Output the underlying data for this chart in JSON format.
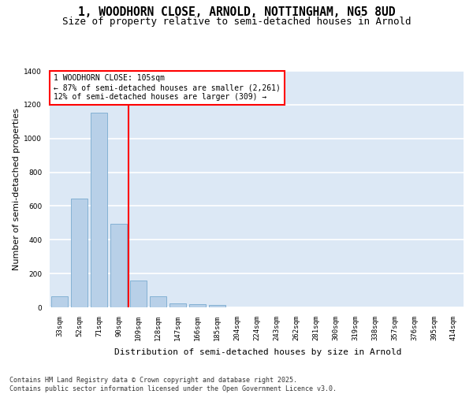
{
  "title_line1": "1, WOODHORN CLOSE, ARNOLD, NOTTINGHAM, NG5 8UD",
  "title_line2": "Size of property relative to semi-detached houses in Arnold",
  "xlabel": "Distribution of semi-detached houses by size in Arnold",
  "ylabel": "Number of semi-detached properties",
  "bins": [
    "33sqm",
    "52sqm",
    "71sqm",
    "90sqm",
    "109sqm",
    "128sqm",
    "147sqm",
    "166sqm",
    "185sqm",
    "204sqm",
    "224sqm",
    "243sqm",
    "262sqm",
    "281sqm",
    "300sqm",
    "319sqm",
    "338sqm",
    "357sqm",
    "376sqm",
    "395sqm",
    "414sqm"
  ],
  "values": [
    65,
    645,
    1155,
    495,
    160,
    65,
    25,
    20,
    15,
    0,
    0,
    0,
    0,
    0,
    0,
    0,
    0,
    0,
    0,
    0,
    0
  ],
  "bar_color": "#b8d0e8",
  "bar_edge_color": "#7aaacf",
  "vline_color": "red",
  "annotation_title": "1 WOODHORN CLOSE: 105sqm",
  "annotation_line2": "← 87% of semi-detached houses are smaller (2,261)",
  "annotation_line3": "12% of semi-detached houses are larger (309) →",
  "annotation_box_color": "red",
  "ylim": [
    0,
    1400
  ],
  "yticks": [
    0,
    200,
    400,
    600,
    800,
    1000,
    1200,
    1400
  ],
  "background_color": "#dce8f5",
  "grid_color": "white",
  "footer_line1": "Contains HM Land Registry data © Crown copyright and database right 2025.",
  "footer_line2": "Contains public sector information licensed under the Open Government Licence v3.0.",
  "title_fontsize": 10.5,
  "subtitle_fontsize": 9,
  "axis_label_fontsize": 8,
  "tick_fontsize": 6.5,
  "annotation_fontsize": 7,
  "footer_fontsize": 6
}
